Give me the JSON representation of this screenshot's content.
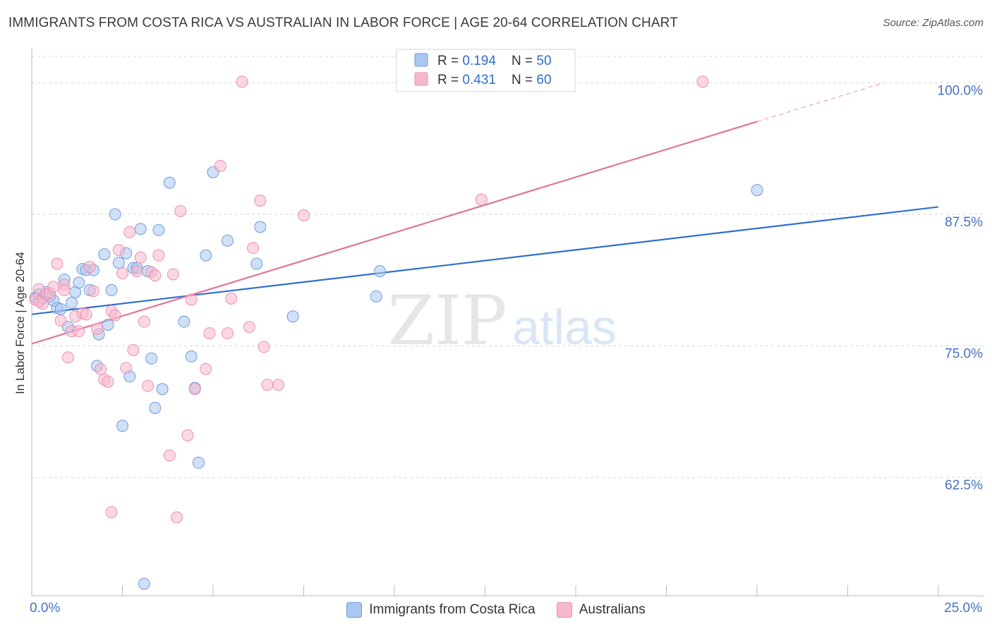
{
  "title": "IMMIGRANTS FROM COSTA RICA VS AUSTRALIAN IN LABOR FORCE | AGE 20-64 CORRELATION CHART",
  "source": "Source: ZipAtlas.com",
  "watermark": {
    "part1": "ZIP",
    "part2": "atlas"
  },
  "colors": {
    "blue_fill": "#a9c7f0",
    "blue_stroke": "#6f9be0",
    "blue_line": "#2f6fcc",
    "pink_fill": "#f6b8cc",
    "pink_stroke": "#ee8fae",
    "pink_line": "#e2739c",
    "tick_label": "#4472c4",
    "grid": "#d8d8d8"
  },
  "legend_box": {
    "rows": [
      {
        "r_label": "R = ",
        "r_value": "0.194",
        "n_label": "N = ",
        "n_value": "50"
      },
      {
        "r_label": "R = ",
        "r_value": "0.431",
        "n_label": "N = ",
        "n_value": "60"
      }
    ]
  },
  "bottom_legend": [
    "Immigrants from Costa Rica",
    "Australians"
  ],
  "chart_data": {
    "type": "scatter",
    "title": "IMMIGRANTS FROM COSTA RICA VS AUSTRALIAN IN LABOR FORCE | AGE 20-64 CORRELATION CHART",
    "xlabel": "",
    "ylabel": "In Labor Force | Age 20-64",
    "xlim": [
      0,
      25
    ],
    "ylim": [
      51.25,
      102.5
    ],
    "x_tick_labels": [
      "0.0%",
      "25.0%"
    ],
    "y_ticks": [
      62.5,
      75.0,
      87.5,
      100.0
    ],
    "y_tick_labels": [
      "62.5%",
      "75.0%",
      "87.5%",
      "100.0%"
    ],
    "grid": true,
    "legend_position": "top-center",
    "series": [
      {
        "name": "Immigrants from Costa Rica",
        "color": "#a9c7f0",
        "r": 0.194,
        "n": 50,
        "trend": {
          "x": [
            0,
            25
          ],
          "y": [
            78.0,
            88.2
          ],
          "dashed_from": null
        },
        "points": [
          [
            0.1,
            79.6
          ],
          [
            0.2,
            79.9
          ],
          [
            0.3,
            79.5
          ],
          [
            0.4,
            80.1
          ],
          [
            0.5,
            79.7
          ],
          [
            0.6,
            79.3
          ],
          [
            0.7,
            78.6
          ],
          [
            0.8,
            78.5
          ],
          [
            0.9,
            81.3
          ],
          [
            1.0,
            76.8
          ],
          [
            1.1,
            79.1
          ],
          [
            1.2,
            80.1
          ],
          [
            1.3,
            81.0
          ],
          [
            1.4,
            82.3
          ],
          [
            1.5,
            82.2
          ],
          [
            1.6,
            80.3
          ],
          [
            1.7,
            82.2
          ],
          [
            1.8,
            73.1
          ],
          [
            1.85,
            76.1
          ],
          [
            2.0,
            83.7
          ],
          [
            2.1,
            77.0
          ],
          [
            2.2,
            80.3
          ],
          [
            2.3,
            87.5
          ],
          [
            2.4,
            82.9
          ],
          [
            2.5,
            67.4
          ],
          [
            2.6,
            83.8
          ],
          [
            2.7,
            72.1
          ],
          [
            2.8,
            82.4
          ],
          [
            2.9,
            82.4
          ],
          [
            3.0,
            86.1
          ],
          [
            3.1,
            52.4
          ],
          [
            3.2,
            82.1
          ],
          [
            3.3,
            73.8
          ],
          [
            3.4,
            69.1
          ],
          [
            3.5,
            86.0
          ],
          [
            3.6,
            70.9
          ],
          [
            3.8,
            90.5
          ],
          [
            4.2,
            77.3
          ],
          [
            4.4,
            74.0
          ],
          [
            4.5,
            71.0
          ],
          [
            4.6,
            63.9
          ],
          [
            4.8,
            83.6
          ],
          [
            5.0,
            91.5
          ],
          [
            5.4,
            85.0
          ],
          [
            6.2,
            82.8
          ],
          [
            6.3,
            86.3
          ],
          [
            7.2,
            77.8
          ],
          [
            9.5,
            79.7
          ],
          [
            9.6,
            82.1
          ],
          [
            20.0,
            89.8
          ]
        ]
      },
      {
        "name": "Australians",
        "color": "#f6b8cc",
        "r": 0.431,
        "n": 60,
        "trend": {
          "x": [
            0,
            23.5
          ],
          "y": [
            75.2,
            100.0
          ],
          "dashed_from": 20.0
        },
        "points": [
          [
            0.1,
            79.4
          ],
          [
            0.2,
            80.4
          ],
          [
            0.3,
            79.0
          ],
          [
            0.4,
            79.9
          ],
          [
            0.5,
            80.0
          ],
          [
            0.6,
            80.6
          ],
          [
            0.7,
            82.8
          ],
          [
            0.8,
            77.4
          ],
          [
            0.9,
            80.8
          ],
          [
            1.0,
            73.9
          ],
          [
            1.1,
            76.4
          ],
          [
            1.2,
            77.8
          ],
          [
            1.3,
            76.4
          ],
          [
            1.4,
            78.1
          ],
          [
            1.5,
            78.0
          ],
          [
            1.6,
            82.5
          ],
          [
            1.7,
            80.2
          ],
          [
            1.8,
            76.6
          ],
          [
            1.9,
            72.8
          ],
          [
            2.0,
            71.8
          ],
          [
            2.1,
            71.6
          ],
          [
            2.2,
            78.3
          ],
          [
            2.3,
            77.9
          ],
          [
            2.4,
            84.1
          ],
          [
            2.5,
            81.9
          ],
          [
            2.6,
            72.9
          ],
          [
            2.7,
            85.8
          ],
          [
            2.8,
            74.6
          ],
          [
            2.2,
            59.2
          ],
          [
            2.9,
            82.1
          ],
          [
            3.0,
            83.4
          ],
          [
            3.1,
            77.3
          ],
          [
            3.2,
            71.2
          ],
          [
            3.3,
            82.0
          ],
          [
            3.4,
            81.7
          ],
          [
            3.5,
            83.6
          ],
          [
            3.8,
            64.6
          ],
          [
            4.0,
            58.7
          ],
          [
            4.1,
            87.8
          ],
          [
            4.3,
            66.5
          ],
          [
            4.4,
            79.4
          ],
          [
            4.5,
            70.9
          ],
          [
            4.8,
            72.8
          ],
          [
            4.9,
            76.2
          ],
          [
            5.2,
            92.1
          ],
          [
            5.4,
            76.2
          ],
          [
            5.5,
            79.5
          ],
          [
            5.8,
            100.1
          ],
          [
            6.0,
            76.8
          ],
          [
            6.1,
            84.3
          ],
          [
            6.3,
            88.8
          ],
          [
            6.4,
            74.9
          ],
          [
            6.5,
            71.3
          ],
          [
            6.8,
            71.3
          ],
          [
            7.5,
            87.4
          ],
          [
            12.4,
            88.9
          ],
          [
            18.5,
            100.1
          ],
          [
            0.2,
            79.2
          ],
          [
            0.9,
            80.3
          ],
          [
            3.9,
            81.8
          ]
        ]
      }
    ]
  }
}
